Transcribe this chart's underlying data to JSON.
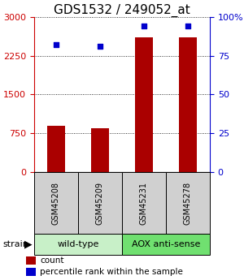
{
  "title": "GDS1532 / 249052_at",
  "samples": [
    "GSM45208",
    "GSM45209",
    "GSM45231",
    "GSM45278"
  ],
  "counts": [
    900,
    850,
    2600,
    2600
  ],
  "percentiles": [
    82,
    81,
    94,
    94
  ],
  "groups": [
    {
      "label": "wild-type",
      "samples": [
        0,
        1
      ],
      "color": "#c8f0c8"
    },
    {
      "label": "AOX anti-sense",
      "samples": [
        2,
        3
      ],
      "color": "#70e070"
    }
  ],
  "strain_label": "strain",
  "y_left_ticks": [
    0,
    750,
    1500,
    2250,
    3000
  ],
  "y_right_ticks": [
    0,
    25,
    50,
    75,
    100
  ],
  "ylim_left": [
    0,
    3000
  ],
  "ylim_right": [
    0,
    100
  ],
  "bar_color": "#aa0000",
  "dot_color": "#0000cc",
  "bar_width": 0.4,
  "legend_items": [
    {
      "label": "count",
      "color": "#aa0000"
    },
    {
      "label": "percentile rank within the sample",
      "color": "#0000cc"
    }
  ],
  "sample_box_color": "#d0d0d0",
  "title_fontsize": 11,
  "tick_fontsize": 8,
  "legend_fontsize": 7.5
}
